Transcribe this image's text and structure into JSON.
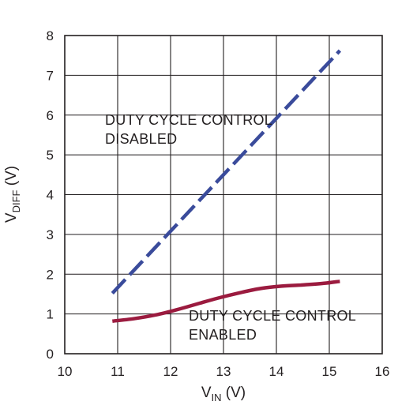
{
  "chart_data": {
    "type": "line",
    "xlabel": {
      "main": "V",
      "sub": "IN",
      "unit": " (V)"
    },
    "ylabel": {
      "main": "V",
      "sub": "DIFF",
      "unit": " (V)"
    },
    "xlim": [
      10,
      16
    ],
    "ylim": [
      0,
      8
    ],
    "x_ticks": [
      "10",
      "11",
      "12",
      "13",
      "14",
      "15",
      "16"
    ],
    "y_ticks": [
      "0",
      "1",
      "2",
      "3",
      "4",
      "5",
      "6",
      "7",
      "8"
    ],
    "grid": true,
    "series": [
      {
        "annotation": [
          "DUTY CYCLE CONTROL",
          "DISABLED"
        ],
        "color": "#3a4b9b",
        "style": "dashed",
        "x": [
          10.9,
          15.2
        ],
        "y": [
          1.52,
          7.62
        ]
      },
      {
        "annotation": [
          "DUTY CYCLE CONTROL",
          "ENABLED"
        ],
        "color": "#9b1b3f",
        "style": "solid",
        "x": [
          10.9,
          11.3,
          11.7,
          12.1,
          12.5,
          12.9,
          13.3,
          13.7,
          14.1,
          14.5,
          14.9,
          15.2
        ],
        "y": [
          0.82,
          0.88,
          0.97,
          1.1,
          1.25,
          1.4,
          1.53,
          1.64,
          1.7,
          1.73,
          1.77,
          1.82
        ]
      }
    ]
  }
}
